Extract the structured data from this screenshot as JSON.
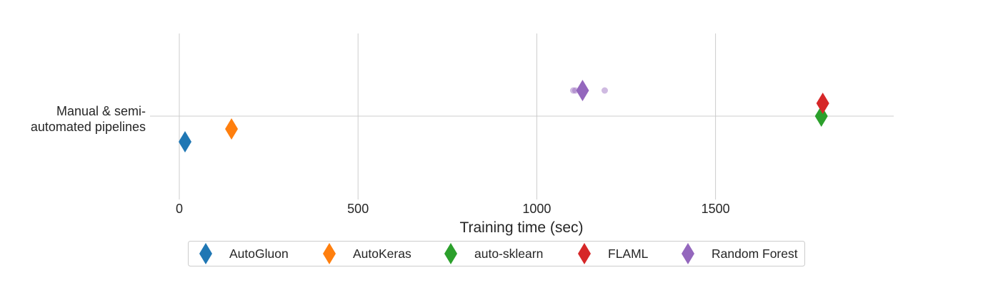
{
  "chart_data": {
    "type": "scatter",
    "title": "",
    "xlabel": "Training time (sec)",
    "ylabel": "",
    "xlim": [
      -180,
      2000
    ],
    "xticks": [
      0,
      500,
      1000,
      1500
    ],
    "xtick_labels": [
      "0",
      "500",
      "1000",
      "1500"
    ],
    "categories": [
      {
        "label_line1": "Manual & semi-",
        "label_line2": "automated pipelines"
      }
    ],
    "grid": true,
    "legend_position": "bottom",
    "series": [
      {
        "name": "AutoGluon",
        "color": "#1f77b4",
        "marker": "diamond",
        "mean": 16,
        "outliers": []
      },
      {
        "name": "AutoKeras",
        "color": "#ff7f0e",
        "marker": "diamond",
        "mean": 146,
        "outliers": []
      },
      {
        "name": "auto-sklearn",
        "color": "#2ca02c",
        "marker": "diamond",
        "mean": 1796,
        "outliers": []
      },
      {
        "name": "FLAML",
        "color": "#d62728",
        "marker": "diamond",
        "mean": 1800,
        "outliers": []
      },
      {
        "name": "Random Forest",
        "color": "#9467bd",
        "marker": "diamond",
        "mean": 1128,
        "outliers": [
          1102,
          1108,
          1190
        ]
      }
    ]
  }
}
